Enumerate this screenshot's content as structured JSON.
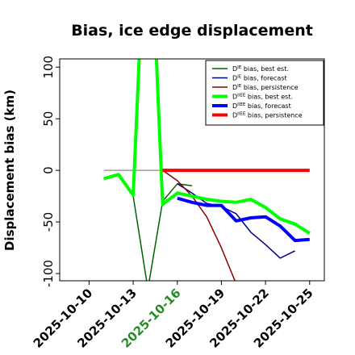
{
  "chart_data": {
    "type": "line",
    "title": "Bias, ice edge displacement",
    "ylabel": "Displacement bias (km)",
    "xlabel": "",
    "xlim": [
      "2025-10-08",
      "2025-10-26"
    ],
    "ylim": [
      -107,
      108
    ],
    "y_ticks": [
      -100,
      -50,
      0,
      50,
      100
    ],
    "x_ticks": [
      {
        "label": "2025-10-10",
        "date": "2025-10-10",
        "color": "#000000"
      },
      {
        "label": "2025-10-13",
        "date": "2025-10-13",
        "color": "#000000"
      },
      {
        "label": "2025-10-16",
        "date": "2025-10-16",
        "color": "#228b22"
      },
      {
        "label": "2025-10-19",
        "date": "2025-10-19",
        "color": "#000000"
      },
      {
        "label": "2025-10-22",
        "date": "2025-10-22",
        "color": "#000000"
      },
      {
        "label": "2025-10-25",
        "date": "2025-10-25",
        "color": "#000000"
      }
    ],
    "reference_line": {
      "y": 0,
      "from": "2025-10-11",
      "to": "2025-10-15",
      "color": "#888888"
    },
    "legend": {
      "position": "top-right",
      "entries": [
        {
          "prefix": "D",
          "sup": "IE",
          "text": " bias, best est.",
          "color": "#006400",
          "width": 1.5
        },
        {
          "prefix": "D",
          "sup": "IE",
          "text": " bias, forecast",
          "color": "#00008b",
          "width": 1.5
        },
        {
          "prefix": "D",
          "sup": "IE",
          "text": " bias, persistence",
          "color": "#8b0000",
          "width": 1.5
        },
        {
          "prefix": "D",
          "sup": "IIEE",
          "text": " bias, best est.",
          "color": "#00ff00",
          "width": 4
        },
        {
          "prefix": "D",
          "sup": "IIEE",
          "text": " bias, forecast",
          "color": "#0000ff",
          "width": 4
        },
        {
          "prefix": "D",
          "sup": "IIEE",
          "text": " bias, persistence",
          "color": "#ff0000",
          "width": 4
        }
      ]
    },
    "series": [
      {
        "key": "ie-best-est",
        "color": "#006400",
        "width": 1.5,
        "x": [
          "2025-10-11",
          "2025-10-12",
          "2025-10-13",
          "2025-10-14",
          "2025-10-15",
          "2025-10-16",
          "2025-10-17"
        ],
        "y": [
          -8,
          -5,
          -25,
          -115,
          -30,
          -13,
          -15
        ]
      },
      {
        "key": "ie-forecast",
        "color": "#00008b",
        "width": 1.5,
        "x": [
          "2025-10-16",
          "2025-10-17",
          "2025-10-18",
          "2025-10-19",
          "2025-10-20",
          "2025-10-21",
          "2025-10-22",
          "2025-10-23",
          "2025-10-24"
        ],
        "y": [
          -13,
          -22,
          -32,
          -35,
          -42,
          -60,
          -72,
          -85,
          -78
        ]
      },
      {
        "key": "ie-persistence",
        "color": "#8b0000",
        "width": 1.5,
        "x": [
          "2025-10-15",
          "2025-10-16",
          "2025-10-17",
          "2025-10-18",
          "2025-10-19",
          "2025-10-20"
        ],
        "y": [
          0,
          -10,
          -25,
          -45,
          -75,
          -110
        ]
      },
      {
        "key": "iiee-best-est",
        "color": "#00ff00",
        "width": 4,
        "x": [
          "2025-10-11",
          "2025-10-12",
          "2025-10-13",
          "2025-10-14",
          "2025-10-15",
          "2025-10-16",
          "2025-10-17",
          "2025-10-18",
          "2025-10-19",
          "2025-10-20",
          "2025-10-21",
          "2025-10-22",
          "2025-10-23",
          "2025-10-24",
          "2025-10-25"
        ],
        "y": [
          -8,
          -4,
          -24,
          300,
          -33,
          -22,
          -25,
          -28,
          -30,
          -31,
          -28,
          -36,
          -47,
          -52,
          -61
        ]
      },
      {
        "key": "iiee-forecast",
        "color": "#0000ff",
        "width": 4,
        "x": [
          "2025-10-16",
          "2025-10-17",
          "2025-10-18",
          "2025-10-19",
          "2025-10-20",
          "2025-10-21",
          "2025-10-22",
          "2025-10-23",
          "2025-10-24",
          "2025-10-25"
        ],
        "y": [
          -27,
          -31,
          -34,
          -34,
          -49,
          -46,
          -45,
          -54,
          -68,
          -67
        ]
      },
      {
        "key": "iiee-persistence",
        "color": "#ff0000",
        "width": 4,
        "x": [
          "2025-10-15",
          "2025-10-25"
        ],
        "y": [
          0,
          0
        ]
      }
    ]
  }
}
